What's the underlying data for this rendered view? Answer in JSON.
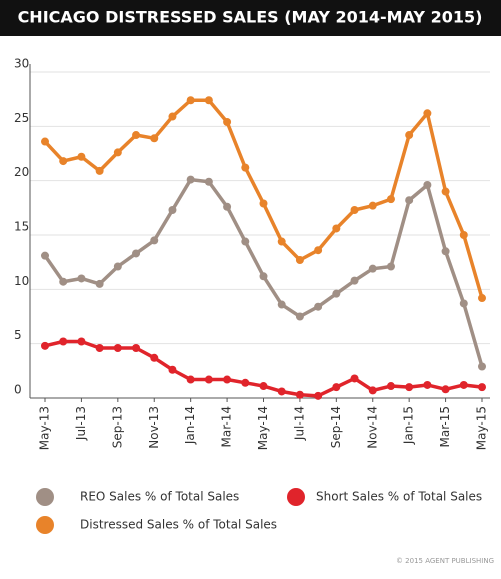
{
  "chart_data": {
    "type": "line",
    "title": "CHICAGO DISTRESSED SALES (MAY 2014-MAY 2015)",
    "categories": [
      "May-13",
      null,
      "Jul-13",
      null,
      "Sep-13",
      null,
      "Nov-13",
      null,
      "Jan-14",
      null,
      "Mar-14",
      null,
      "May-14",
      null,
      "Jul-14",
      null,
      "Sep-14",
      null,
      "Nov-14",
      null,
      "Jan-15",
      null,
      "Mar-15",
      null,
      "May-15"
    ],
    "series": [
      {
        "name": "REO Sales % of Total Sales",
        "color": "#a08f85",
        "values": [
          13.1,
          10.7,
          11.0,
          10.5,
          12.1,
          13.3,
          14.5,
          17.3,
          20.1,
          19.9,
          17.6,
          14.4,
          11.2,
          8.6,
          7.5,
          8.4,
          9.6,
          10.8,
          11.9,
          12.1,
          18.2,
          19.6,
          13.5,
          8.7,
          2.9
        ]
      },
      {
        "name": "Short Sales % of Total Sales",
        "color": "#e0242b",
        "values": [
          4.8,
          5.2,
          5.2,
          4.6,
          4.6,
          4.6,
          3.7,
          2.6,
          1.7,
          1.7,
          1.7,
          1.4,
          1.1,
          0.6,
          0.3,
          0.2,
          1.0,
          1.8,
          0.7,
          1.1,
          1.0,
          1.2,
          0.8,
          1.2,
          1.0
        ]
      },
      {
        "name": "Distressed Sales % of Total Sales",
        "color": "#e8832a",
        "values": [
          23.6,
          21.8,
          22.2,
          20.9,
          22.6,
          24.2,
          23.9,
          25.9,
          27.4,
          27.4,
          25.4,
          21.2,
          17.9,
          14.4,
          12.7,
          13.6,
          15.6,
          17.3,
          17.7,
          18.3,
          24.2,
          26.2,
          19.0,
          15.0,
          9.2
        ]
      }
    ],
    "ylim": [
      0,
      30
    ],
    "yticks": [
      0,
      5,
      10,
      15,
      20,
      25,
      30
    ],
    "grid": true,
    "legend": "bottom",
    "credit": "© 2015 AGENT PUBLISHING"
  }
}
